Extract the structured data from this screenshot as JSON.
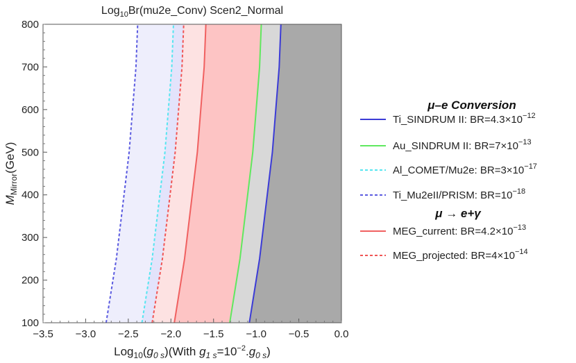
{
  "chart_data": {
    "type": "line",
    "title_prefix": "Log",
    "title_sub": "10",
    "title_rest": "Br(mu2e_Conv) Scen2_Normal",
    "xlabel": {
      "pre": "Log",
      "pre_sub": "10",
      "open": "(",
      "g0": "g",
      "g0_sub": "0 s",
      "mid": ")(With ",
      "g1": "g",
      "g1_sub": "1 s",
      "eq": "=10",
      "exp": "−2",
      "dot": ".",
      "g0b": "g",
      "g0b_sub": "0 s",
      "close": ")"
    },
    "ylabel": {
      "main": "M",
      "sub": "Mirror",
      "rest": "(GeV)"
    },
    "xlim": [
      -3.5,
      0.0
    ],
    "ylim": [
      100,
      800
    ],
    "xticks": [
      "−3.5",
      "−3.0",
      "−2.5",
      "−2.0",
      "−1.5",
      "−1.0",
      "−0.5",
      "0.0"
    ],
    "xtick_values": [
      -3.5,
      -3.0,
      -2.5,
      -2.0,
      -1.5,
      -1.0,
      -0.5,
      0.0
    ],
    "yticks": [
      "100",
      "200",
      "300",
      "400",
      "500",
      "600",
      "700",
      "800"
    ],
    "ytick_values": [
      100,
      200,
      300,
      400,
      500,
      600,
      700,
      800
    ],
    "curve_y": [
      100,
      150,
      200,
      250,
      300,
      350,
      400,
      450,
      500,
      550,
      600,
      650,
      700,
      750,
      800
    ],
    "series": [
      {
        "name": "Ti_SINDRUM II: BR=4.3×10",
        "name_exp": "−12",
        "group": "mue",
        "color": "#3b3bd6",
        "style": "solid",
        "fill": "#a9a9a9",
        "x": [
          -1.08,
          -1.04,
          -1.0,
          -0.96,
          -0.93,
          -0.9,
          -0.87,
          -0.84,
          -0.81,
          -0.79,
          -0.77,
          -0.75,
          -0.73,
          -0.72,
          -0.71
        ]
      },
      {
        "name": "Au_SINDRUM II: BR=7×10",
        "name_exp": "−13",
        "group": "mue",
        "color": "#5fe85f",
        "style": "solid",
        "fill": "#d8d8d8",
        "x": [
          -1.31,
          -1.27,
          -1.23,
          -1.19,
          -1.16,
          -1.13,
          -1.1,
          -1.07,
          -1.04,
          -1.02,
          -1.0,
          -0.98,
          -0.96,
          -0.95,
          -0.94
        ]
      },
      {
        "name": "Al_COMET/Mu2e: BR=3×10",
        "name_exp": "−17",
        "group": "mue",
        "color": "#55e6f0",
        "style": "dashed",
        "fill": "#e3e3fb",
        "x": [
          -2.34,
          -2.3,
          -2.26,
          -2.22,
          -2.19,
          -2.16,
          -2.13,
          -2.1,
          -2.07,
          -2.05,
          -2.03,
          -2.01,
          -1.99,
          -1.98,
          -1.97
        ]
      },
      {
        "name": "Ti_Mu2eII/PRISM: BR=10",
        "name_exp": "−18",
        "group": "mue",
        "color": "#5a5ae0",
        "style": "dashed",
        "fill": "#eeeefc",
        "x": [
          -2.76,
          -2.72,
          -2.68,
          -2.64,
          -2.61,
          -2.58,
          -2.55,
          -2.52,
          -2.49,
          -2.47,
          -2.45,
          -2.43,
          -2.41,
          -2.4,
          -2.39
        ]
      },
      {
        "name": "MEG_current: BR=4.2×10",
        "name_exp": "−13",
        "group": "meg",
        "color": "#f06060",
        "style": "solid",
        "fill": "#fdc4c4",
        "x": [
          -1.96,
          -1.92,
          -1.88,
          -1.84,
          -1.81,
          -1.78,
          -1.75,
          -1.72,
          -1.69,
          -1.67,
          -1.65,
          -1.63,
          -1.61,
          -1.6,
          -1.59
        ]
      },
      {
        "name": "MEG_projected: BR=4×10",
        "name_exp": "−14",
        "group": "meg",
        "color": "#f05555",
        "style": "dashed",
        "fill": "#fde2e2",
        "x": [
          -2.22,
          -2.18,
          -2.14,
          -2.1,
          -2.07,
          -2.04,
          -2.01,
          -1.98,
          -1.95,
          -1.93,
          -1.91,
          -1.89,
          -1.87,
          -1.86,
          -1.85
        ]
      }
    ],
    "legend": {
      "heading_mue": "μ–e Conversion",
      "heading_meg": "μ → e+γ",
      "placement": "right"
    },
    "grid": false
  }
}
